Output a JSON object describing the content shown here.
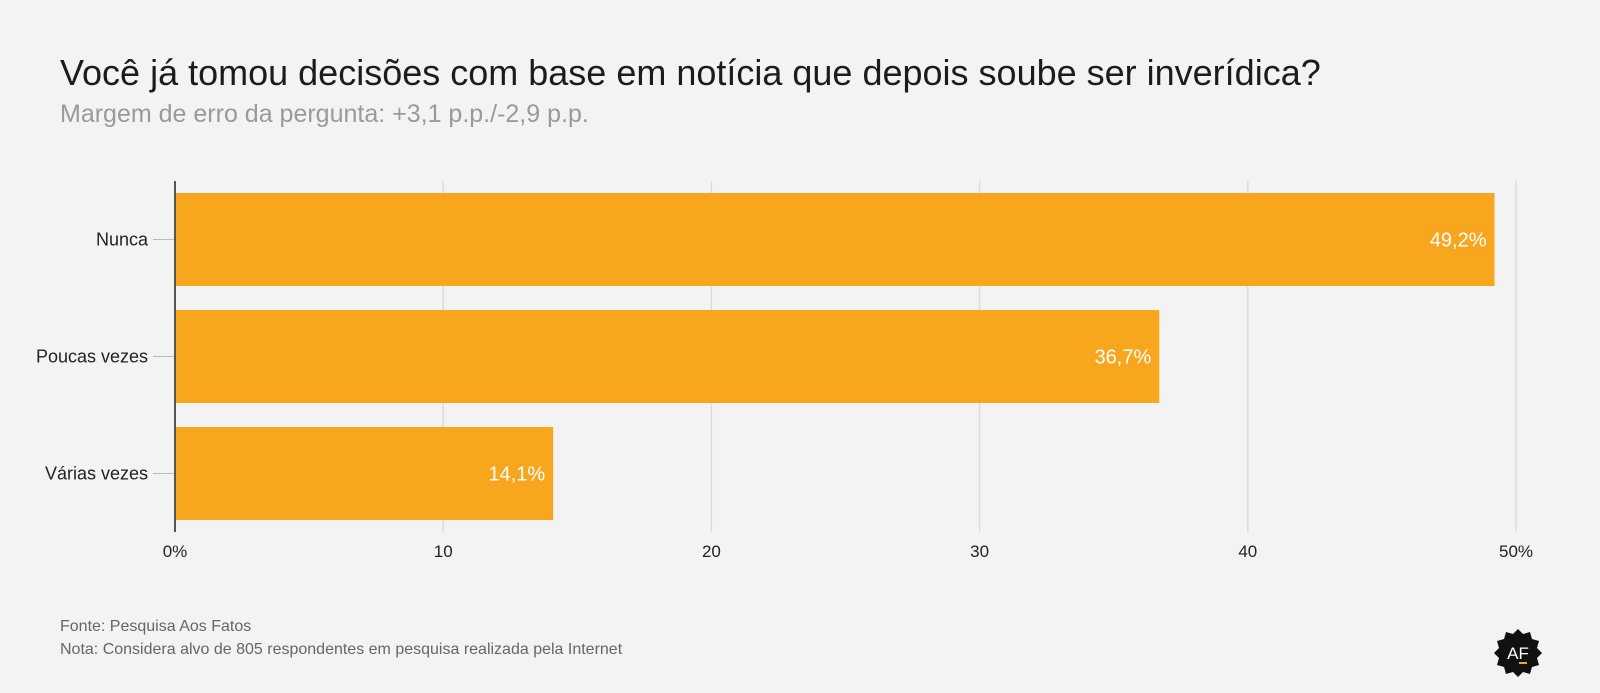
{
  "title": "Você já tomou decisões com base em notícia que depois soube ser inverídica?",
  "subtitle": "Margem de erro da pergunta: +3,1 p.p./-2,9 p.p.",
  "chart_data": {
    "type": "bar",
    "orientation": "horizontal",
    "categories": [
      "Nunca",
      "Poucas vezes",
      "Várias vezes"
    ],
    "values": [
      49.2,
      36.7,
      14.1
    ],
    "value_labels": [
      "49,2%",
      "36,7%",
      "14,1%"
    ],
    "x_ticks": [
      0,
      10,
      20,
      30,
      40,
      50
    ],
    "x_tick_labels": [
      "0%",
      "10",
      "20",
      "30",
      "40",
      "50%"
    ],
    "xlim": [
      0,
      50
    ],
    "grid": true,
    "colors": {
      "bar": "#f9a61f",
      "value_label": "#ffffff"
    }
  },
  "footer": {
    "source": "Fonte: Pesquisa Aos Fatos",
    "note": "Nota: Considera alvo de 805 respondentes em pesquisa realizada pela Internet"
  },
  "logo": {
    "text": "AF",
    "icon": "aos-fatos-logo-icon"
  }
}
